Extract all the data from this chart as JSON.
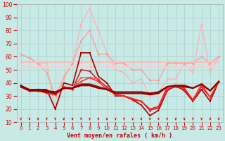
{
  "xlabel": "Vent moyen/en rafales ( km/h )",
  "background_color": "#c8eae6",
  "grid_color": "#aacccc",
  "xlim": [
    -0.5,
    23.5
  ],
  "ylim": [
    10,
    100
  ],
  "yticks": [
    10,
    20,
    30,
    40,
    50,
    60,
    70,
    80,
    90,
    100
  ],
  "xticks": [
    0,
    1,
    2,
    3,
    4,
    5,
    6,
    7,
    8,
    9,
    10,
    11,
    12,
    13,
    14,
    15,
    16,
    17,
    18,
    19,
    20,
    21,
    22,
    23
  ],
  "series": [
    {
      "x": [
        0,
        1,
        2,
        3,
        4,
        5,
        6,
        7,
        8,
        9,
        10,
        11,
        12,
        13,
        14,
        15,
        16,
        17,
        18,
        19,
        20,
        21,
        22,
        23
      ],
      "y": [
        62,
        59,
        55,
        55,
        20,
        45,
        55,
        85,
        97,
        80,
        63,
        50,
        48,
        40,
        43,
        30,
        32,
        43,
        43,
        55,
        48,
        85,
        48,
        60
      ],
      "color": "#ffb0b0",
      "lw": 0.9,
      "marker": "D",
      "ms": 1.8
    },
    {
      "x": [
        0,
        1,
        2,
        3,
        4,
        5,
        6,
        7,
        8,
        9,
        10,
        11,
        12,
        13,
        14,
        15,
        16,
        17,
        18,
        19,
        20,
        21,
        22,
        23
      ],
      "y": [
        62,
        59,
        55,
        48,
        30,
        44,
        55,
        72,
        80,
        62,
        62,
        55,
        55,
        50,
        50,
        42,
        42,
        55,
        55,
        55,
        55,
        60,
        55,
        60
      ],
      "color": "#ff9999",
      "lw": 0.9,
      "marker": "D",
      "ms": 1.8
    },
    {
      "x": [
        0,
        1,
        2,
        3,
        4,
        5,
        6,
        7,
        8,
        9,
        10,
        11,
        12,
        13,
        14,
        15,
        16,
        17,
        18,
        19,
        20,
        21,
        22,
        23
      ],
      "y": [
        56,
        56,
        56,
        56,
        56,
        56,
        56,
        56,
        56,
        56,
        56,
        56,
        56,
        56,
        56,
        56,
        56,
        56,
        56,
        56,
        56,
        56,
        56,
        56
      ],
      "color": "#ffbbbb",
      "lw": 1.5,
      "marker": null,
      "ms": 0
    },
    {
      "x": [
        0,
        1,
        2,
        3,
        4,
        5,
        6,
        7,
        8,
        9,
        10,
        11,
        12,
        13,
        14,
        15,
        16,
        17,
        18,
        19,
        20,
        21,
        22,
        23
      ],
      "y": [
        52,
        52,
        52,
        52,
        52,
        52,
        52,
        52,
        52,
        52,
        52,
        52,
        52,
        52,
        52,
        52,
        52,
        52,
        52,
        52,
        52,
        52,
        52,
        52
      ],
      "color": "#ffcccc",
      "lw": 1.5,
      "marker": null,
      "ms": 0
    },
    {
      "x": [
        0,
        1,
        2,
        3,
        4,
        5,
        6,
        7,
        8,
        9,
        10,
        11,
        12,
        13,
        14,
        15,
        16,
        17,
        18,
        19,
        20,
        21,
        22,
        23
      ],
      "y": [
        38,
        35,
        35,
        35,
        20,
        40,
        38,
        63,
        63,
        45,
        40,
        30,
        30,
        27,
        23,
        15,
        19,
        34,
        38,
        34,
        26,
        35,
        26,
        41
      ],
      "color": "#aa0000",
      "lw": 1.2,
      "marker": "s",
      "ms": 1.8
    },
    {
      "x": [
        0,
        1,
        2,
        3,
        4,
        5,
        6,
        7,
        8,
        9,
        10,
        11,
        12,
        13,
        14,
        15,
        16,
        17,
        18,
        19,
        20,
        21,
        22,
        23
      ],
      "y": [
        37,
        34,
        34,
        33,
        31,
        36,
        35,
        50,
        49,
        42,
        37,
        31,
        30,
        27,
        26,
        19,
        21,
        35,
        37,
        35,
        27,
        37,
        29,
        41
      ],
      "color": "#cc2222",
      "lw": 1.2,
      "marker": "D",
      "ms": 1.8
    },
    {
      "x": [
        0,
        1,
        2,
        3,
        4,
        5,
        6,
        7,
        8,
        9,
        10,
        11,
        12,
        13,
        14,
        15,
        16,
        17,
        18,
        19,
        20,
        21,
        22,
        23
      ],
      "y": [
        37,
        34,
        35,
        32,
        31,
        37,
        36,
        44,
        44,
        43,
        36,
        31,
        30,
        28,
        26,
        20,
        22,
        36,
        38,
        36,
        27,
        38,
        29,
        41
      ],
      "color": "#ff4444",
      "lw": 1.0,
      "marker": "D",
      "ms": 1.5
    },
    {
      "x": [
        0,
        1,
        2,
        3,
        4,
        5,
        6,
        7,
        8,
        9,
        10,
        11,
        12,
        13,
        14,
        15,
        16,
        17,
        18,
        19,
        20,
        21,
        22,
        23
      ],
      "y": [
        37,
        34,
        34,
        32,
        31,
        37,
        36,
        41,
        44,
        41,
        35,
        31,
        30,
        28,
        26,
        20,
        22,
        37,
        38,
        36,
        27,
        39,
        29,
        41
      ],
      "color": "#ff2222",
      "lw": 1.0,
      "marker": "D",
      "ms": 1.5
    },
    {
      "x": [
        0,
        1,
        2,
        3,
        4,
        5,
        6,
        7,
        8,
        9,
        10,
        11,
        12,
        13,
        14,
        15,
        16,
        17,
        18,
        19,
        20,
        21,
        22,
        23
      ],
      "y": [
        38,
        34,
        35,
        34,
        33,
        36,
        36,
        38,
        38,
        36,
        35,
        33,
        33,
        33,
        33,
        32,
        33,
        37,
        38,
        38,
        36,
        39,
        34,
        41
      ],
      "color": "#880000",
      "lw": 1.5,
      "marker": null,
      "ms": 0
    },
    {
      "x": [
        0,
        1,
        2,
        3,
        4,
        5,
        6,
        7,
        8,
        9,
        10,
        11,
        12,
        13,
        14,
        15,
        16,
        17,
        18,
        19,
        20,
        21,
        22,
        23
      ],
      "y": [
        37,
        34,
        34,
        33,
        32,
        36,
        36,
        39,
        39,
        37,
        35,
        32,
        32,
        32,
        32,
        31,
        32,
        37,
        38,
        37,
        36,
        39,
        34,
        41
      ],
      "color": "#990000",
      "lw": 1.5,
      "marker": null,
      "ms": 0
    }
  ]
}
